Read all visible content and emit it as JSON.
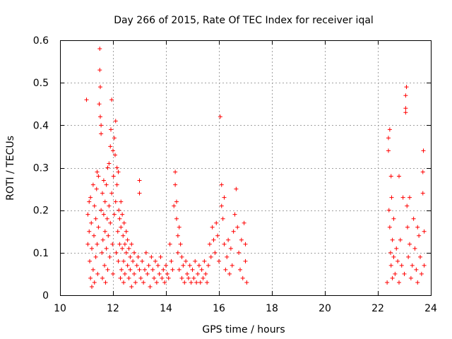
{
  "chart_data": {
    "type": "scatter",
    "title": "Day 266 of 2015, Rate Of TEC Index for receiver iqal",
    "xlabel": "GPS time / hours",
    "ylabel": "ROTI / TECUs",
    "xlim": [
      10,
      24
    ],
    "ylim": [
      0,
      0.6
    ],
    "x_ticks": [
      10,
      12,
      14,
      16,
      18,
      20,
      22,
      24
    ],
    "y_ticks": [
      0,
      0.1,
      0.2,
      0.3,
      0.4,
      0.5,
      0.6
    ],
    "x_tick_labels": [
      "10",
      "12",
      "14",
      "16",
      "18",
      "20",
      "22",
      "24"
    ],
    "y_tick_labels": [
      "0",
      "0.1",
      "0.2",
      "0.3",
      "0.4",
      "0.5",
      "0.6"
    ],
    "grid": true,
    "marker": "+",
    "color": "#ff0000",
    "series": [
      {
        "name": "ROTI",
        "points": [
          [
            11.0,
            0.46
          ],
          [
            11.05,
            0.19
          ],
          [
            11.05,
            0.12
          ],
          [
            11.1,
            0.22
          ],
          [
            11.1,
            0.15
          ],
          [
            11.12,
            0.08
          ],
          [
            11.15,
            0.04
          ],
          [
            11.15,
            0.23
          ],
          [
            11.18,
            0.17
          ],
          [
            11.2,
            0.11
          ],
          [
            11.2,
            0.02
          ],
          [
            11.25,
            0.26
          ],
          [
            11.25,
            0.06
          ],
          [
            11.28,
            0.14
          ],
          [
            11.3,
            0.21
          ],
          [
            11.3,
            0.03
          ],
          [
            11.35,
            0.18
          ],
          [
            11.35,
            0.09
          ],
          [
            11.38,
            0.25
          ],
          [
            11.4,
            0.12
          ],
          [
            11.4,
            0.29
          ],
          [
            11.42,
            0.05
          ],
          [
            11.45,
            0.16
          ],
          [
            11.45,
            0.28
          ],
          [
            11.48,
            0.45
          ],
          [
            11.5,
            0.58
          ],
          [
            11.5,
            0.53
          ],
          [
            11.52,
            0.49
          ],
          [
            11.52,
            0.42
          ],
          [
            11.55,
            0.4
          ],
          [
            11.55,
            0.38
          ],
          [
            11.55,
            0.2
          ],
          [
            11.58,
            0.1
          ],
          [
            11.6,
            0.24
          ],
          [
            11.6,
            0.04
          ],
          [
            11.62,
            0.13
          ],
          [
            11.65,
            0.19
          ],
          [
            11.65,
            0.27
          ],
          [
            11.68,
            0.07
          ],
          [
            11.7,
            0.22
          ],
          [
            11.7,
            0.15
          ],
          [
            11.72,
            0.03
          ],
          [
            11.75,
            0.26
          ],
          [
            11.75,
            0.11
          ],
          [
            11.78,
            0.18
          ],
          [
            11.8,
            0.3
          ],
          [
            11.8,
            0.06
          ],
          [
            11.82,
            0.14
          ],
          [
            11.85,
            0.21
          ],
          [
            11.85,
            0.31
          ],
          [
            11.88,
            0.09
          ],
          [
            11.9,
            0.35
          ],
          [
            11.9,
            0.17
          ],
          [
            11.92,
            0.39
          ],
          [
            11.95,
            0.46
          ],
          [
            11.95,
            0.24
          ],
          [
            11.98,
            0.12
          ],
          [
            12.0,
            0.34
          ],
          [
            12.0,
            0.05
          ],
          [
            12.02,
            0.28
          ],
          [
            12.05,
            0.37
          ],
          [
            12.05,
            0.19
          ],
          [
            12.08,
            0.33
          ],
          [
            12.1,
            0.41
          ],
          [
            12.1,
            0.22
          ],
          [
            12.12,
            0.1
          ],
          [
            12.15,
            0.3
          ],
          [
            12.15,
            0.26
          ],
          [
            12.18,
            0.15
          ],
          [
            12.2,
            0.29
          ],
          [
            12.2,
            0.08
          ],
          [
            12.22,
            0.2
          ],
          [
            12.25,
            0.18
          ],
          [
            12.25,
            0.12
          ],
          [
            12.28,
            0.04
          ],
          [
            12.3,
            0.16
          ],
          [
            12.3,
            0.22
          ],
          [
            12.32,
            0.06
          ],
          [
            12.35,
            0.19
          ],
          [
            12.35,
            0.11
          ],
          [
            12.38,
            0.14
          ],
          [
            12.4,
            0.08
          ],
          [
            12.4,
            0.03
          ],
          [
            12.42,
            0.17
          ],
          [
            12.45,
            0.12
          ],
          [
            12.45,
            0.05
          ],
          [
            12.5,
            0.1
          ],
          [
            12.5,
            0.15
          ],
          [
            12.55,
            0.07
          ],
          [
            12.55,
            0.13
          ],
          [
            12.6,
            0.04
          ],
          [
            12.6,
            0.11
          ],
          [
            12.65,
            0.09
          ],
          [
            12.65,
            0.06
          ],
          [
            12.7,
            0.12
          ],
          [
            12.7,
            0.02
          ],
          [
            12.75,
            0.08
          ],
          [
            12.8,
            0.05
          ],
          [
            12.8,
            0.1
          ],
          [
            12.85,
            0.03
          ],
          [
            12.9,
            0.07
          ],
          [
            12.95,
            0.09
          ],
          [
            13.0,
            0.27
          ],
          [
            13.0,
            0.24
          ],
          [
            13.0,
            0.06
          ],
          [
            13.05,
            0.04
          ],
          [
            13.1,
            0.08
          ],
          [
            13.15,
            0.03
          ],
          [
            13.2,
            0.06
          ],
          [
            13.25,
            0.1
          ],
          [
            13.3,
            0.05
          ],
          [
            13.35,
            0.07
          ],
          [
            13.4,
            0.02
          ],
          [
            13.45,
            0.09
          ],
          [
            13.5,
            0.06
          ],
          [
            13.55,
            0.04
          ],
          [
            13.6,
            0.08
          ],
          [
            13.65,
            0.03
          ],
          [
            13.7,
            0.07
          ],
          [
            13.75,
            0.05
          ],
          [
            13.8,
            0.09
          ],
          [
            13.85,
            0.04
          ],
          [
            13.9,
            0.06
          ],
          [
            13.95,
            0.03
          ],
          [
            14.0,
            0.07
          ],
          [
            14.05,
            0.05
          ],
          [
            14.1,
            0.04
          ],
          [
            14.15,
            0.12
          ],
          [
            14.2,
            0.08
          ],
          [
            14.25,
            0.06
          ],
          [
            14.3,
            0.21
          ],
          [
            14.35,
            0.29
          ],
          [
            14.35,
            0.26
          ],
          [
            14.4,
            0.18
          ],
          [
            14.4,
            0.22
          ],
          [
            14.45,
            0.14
          ],
          [
            14.45,
            0.1
          ],
          [
            14.5,
            0.16
          ],
          [
            14.5,
            0.06
          ],
          [
            14.55,
            0.12
          ],
          [
            14.6,
            0.04
          ],
          [
            14.6,
            0.09
          ],
          [
            14.65,
            0.07
          ],
          [
            14.7,
            0.03
          ],
          [
            14.75,
            0.08
          ],
          [
            14.8,
            0.05
          ],
          [
            14.85,
            0.04
          ],
          [
            14.9,
            0.07
          ],
          [
            14.95,
            0.03
          ],
          [
            15.0,
            0.06
          ],
          [
            15.05,
            0.04
          ],
          [
            15.1,
            0.08
          ],
          [
            15.15,
            0.03
          ],
          [
            15.2,
            0.05
          ],
          [
            15.25,
            0.07
          ],
          [
            15.3,
            0.03
          ],
          [
            15.35,
            0.06
          ],
          [
            15.4,
            0.04
          ],
          [
            15.45,
            0.08
          ],
          [
            15.5,
            0.05
          ],
          [
            15.55,
            0.03
          ],
          [
            15.6,
            0.07
          ],
          [
            15.65,
            0.12
          ],
          [
            15.7,
            0.09
          ],
          [
            15.75,
            0.16
          ],
          [
            15.8,
            0.13
          ],
          [
            15.85,
            0.1
          ],
          [
            15.9,
            0.17
          ],
          [
            15.95,
            0.14
          ],
          [
            16.0,
            0.08
          ],
          [
            16.05,
            0.42
          ],
          [
            16.1,
            0.26
          ],
          [
            16.1,
            0.21
          ],
          [
            16.15,
            0.18
          ],
          [
            16.2,
            0.23
          ],
          [
            16.2,
            0.12
          ],
          [
            16.25,
            0.06
          ],
          [
            16.3,
            0.09
          ],
          [
            16.35,
            0.13
          ],
          [
            16.4,
            0.05
          ],
          [
            16.45,
            0.11
          ],
          [
            16.5,
            0.07
          ],
          [
            16.55,
            0.15
          ],
          [
            16.6,
            0.19
          ],
          [
            16.65,
            0.25
          ],
          [
            16.7,
            0.16
          ],
          [
            16.75,
            0.1
          ],
          [
            16.8,
            0.06
          ],
          [
            16.85,
            0.13
          ],
          [
            16.9,
            0.04
          ],
          [
            16.95,
            0.17
          ],
          [
            17.0,
            0.08
          ],
          [
            17.0,
            0.12
          ],
          [
            17.05,
            0.03
          ],
          [
            22.35,
            0.03
          ],
          [
            22.4,
            0.37
          ],
          [
            22.4,
            0.34
          ],
          [
            22.42,
            0.2
          ],
          [
            22.45,
            0.39
          ],
          [
            22.45,
            0.16
          ],
          [
            22.48,
            0.1
          ],
          [
            22.5,
            0.28
          ],
          [
            22.5,
            0.07
          ],
          [
            22.52,
            0.23
          ],
          [
            22.55,
            0.13
          ],
          [
            22.55,
            0.04
          ],
          [
            22.6,
            0.18
          ],
          [
            22.6,
            0.09
          ],
          [
            22.65,
            0.05
          ],
          [
            22.7,
            0.11
          ],
          [
            22.75,
            0.08
          ],
          [
            22.8,
            0.28
          ],
          [
            22.8,
            0.03
          ],
          [
            22.85,
            0.13
          ],
          [
            22.9,
            0.07
          ],
          [
            22.95,
            0.23
          ],
          [
            23.0,
            0.05
          ],
          [
            23.05,
            0.47
          ],
          [
            23.05,
            0.44
          ],
          [
            23.05,
            0.43
          ],
          [
            23.08,
            0.49
          ],
          [
            23.1,
            0.21
          ],
          [
            23.12,
            0.16
          ],
          [
            23.15,
            0.09
          ],
          [
            23.2,
            0.23
          ],
          [
            23.2,
            0.12
          ],
          [
            23.25,
            0.04
          ],
          [
            23.3,
            0.07
          ],
          [
            23.35,
            0.18
          ],
          [
            23.4,
            0.11
          ],
          [
            23.45,
            0.06
          ],
          [
            23.5,
            0.16
          ],
          [
            23.5,
            0.03
          ],
          [
            23.55,
            0.14
          ],
          [
            23.6,
            0.09
          ],
          [
            23.65,
            0.05
          ],
          [
            23.7,
            0.29
          ],
          [
            23.7,
            0.24
          ],
          [
            23.72,
            0.34
          ],
          [
            23.75,
            0.15
          ],
          [
            23.75,
            0.07
          ]
        ]
      }
    ]
  }
}
